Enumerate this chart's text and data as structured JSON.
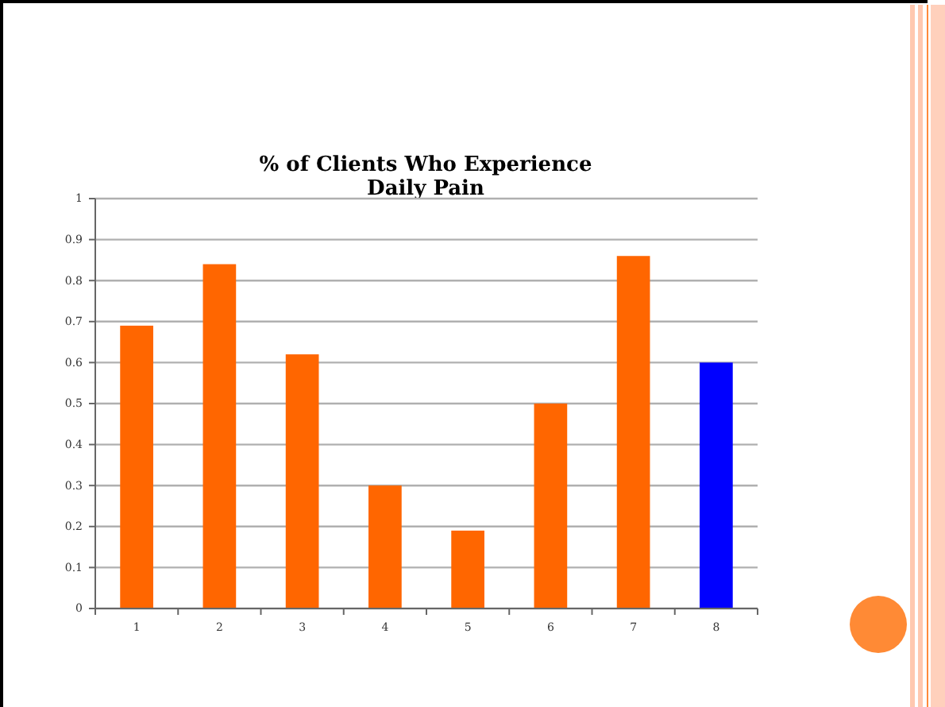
{
  "chart_data": {
    "type": "bar",
    "title": "% of Clients Who Experience\nDaily Pain",
    "categories": [
      "1",
      "2",
      "3",
      "4",
      "5",
      "6",
      "7",
      "8"
    ],
    "values": [
      0.69,
      0.84,
      0.62,
      0.3,
      0.19,
      0.5,
      0.86,
      0.6
    ],
    "colors": [
      "#ff6600",
      "#ff6600",
      "#ff6600",
      "#ff6600",
      "#ff6600",
      "#ff6600",
      "#ff6600",
      "#0000ff"
    ],
    "ylim": [
      0,
      1
    ],
    "yticks": [
      0,
      0.1,
      0.2,
      0.3,
      0.4,
      0.5,
      0.6,
      0.7,
      0.8,
      0.9,
      1
    ],
    "grid": "y"
  }
}
